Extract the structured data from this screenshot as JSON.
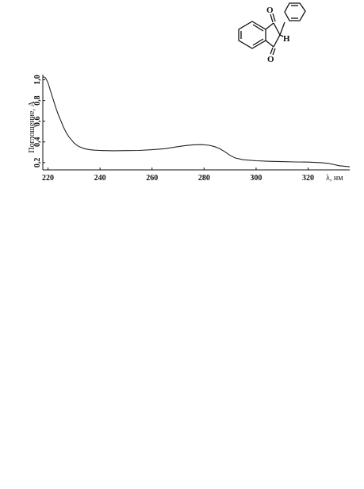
{
  "structure": {
    "atoms": {
      "o_top": "O",
      "o_bottom": "O",
      "h": "H"
    }
  },
  "chart_data": {
    "type": "line",
    "title": "",
    "xlabel": "λ, нм",
    "ylabel": "Поглощение, A",
    "xlim": [
      218,
      336
    ],
    "ylim": [
      0.13,
      1.05
    ],
    "x_ticks": [
      220,
      240,
      260,
      280,
      300,
      320
    ],
    "x_tick_labels": [
      "220",
      "240",
      "260",
      "280",
      "300",
      "320"
    ],
    "y_ticks": [
      0.2,
      0.4,
      0.6,
      0.8,
      1.0
    ],
    "y_tick_labels": [
      "0,2",
      "0,4",
      "0,6",
      "0,8",
      "1,0"
    ],
    "grid": false,
    "series": [
      {
        "x": [
          218,
          219,
          220,
          221,
          222,
          223,
          224,
          225,
          226,
          227,
          228,
          229,
          230,
          231,
          232,
          234,
          236,
          238,
          240,
          245,
          250,
          255,
          260,
          265,
          270,
          273,
          276,
          279,
          282,
          284,
          286,
          288,
          290,
          292,
          295,
          300,
          305,
          310,
          315,
          320,
          325,
          328,
          332,
          336
        ],
        "y": [
          1.03,
          1.02,
          0.97,
          0.89,
          0.81,
          0.73,
          0.66,
          0.6,
          0.54,
          0.49,
          0.45,
          0.42,
          0.39,
          0.37,
          0.355,
          0.335,
          0.325,
          0.32,
          0.318,
          0.315,
          0.316,
          0.318,
          0.325,
          0.335,
          0.355,
          0.365,
          0.372,
          0.374,
          0.368,
          0.355,
          0.335,
          0.305,
          0.27,
          0.245,
          0.228,
          0.218,
          0.213,
          0.21,
          0.207,
          0.205,
          0.2,
          0.192,
          0.17,
          0.16
        ]
      }
    ]
  }
}
